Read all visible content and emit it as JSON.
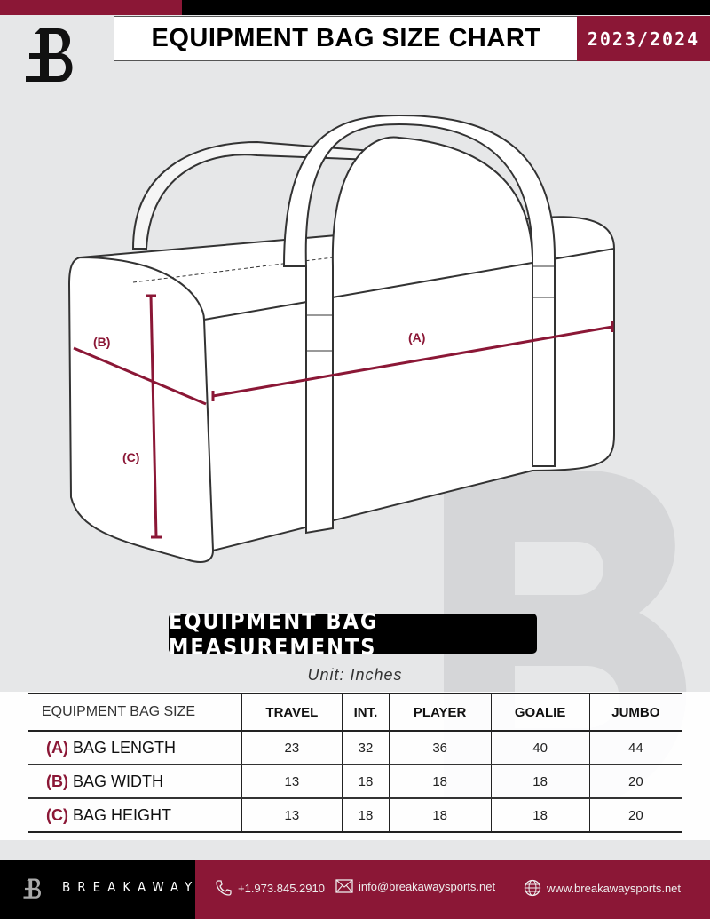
{
  "header": {
    "title": "EQUIPMENT BAG SIZE CHART",
    "season": "2023/2024",
    "logo_letter": "B"
  },
  "diagram": {
    "label_a": "(A)",
    "label_b": "(B)",
    "label_c": "(C)"
  },
  "section_title": "EQUIPMENT BAG MEASUREMENTS",
  "unit": "Unit: Inches",
  "table": {
    "header": [
      "EQUIPMENT BAG SIZE",
      "TRAVEL",
      "INT.",
      "PLAYER",
      "GOALIE",
      "JUMBO"
    ],
    "rows": [
      {
        "letter": "(A)",
        "label": "BAG LENGTH",
        "values": [
          "23",
          "32",
          "36",
          "40",
          "44"
        ]
      },
      {
        "letter": "(B)",
        "label": "BAG WIDTH",
        "values": [
          "13",
          "18",
          "18",
          "18",
          "20"
        ]
      },
      {
        "letter": "(C)",
        "label": "BAG HEIGHT",
        "values": [
          "13",
          "18",
          "18",
          "18",
          "20"
        ]
      }
    ]
  },
  "footer": {
    "brand": "BREAKAWAY",
    "phone": "+1.973.845.2910",
    "email": "info@breakawaysports.net",
    "website": "www.breakawaysports.net",
    "phone_icon": "phone-icon",
    "email_icon": "envelope-icon",
    "web_icon": "globe-icon"
  },
  "colors": {
    "accent": "#8b1736",
    "dark": "#000000",
    "background": "#e6e7e8"
  }
}
